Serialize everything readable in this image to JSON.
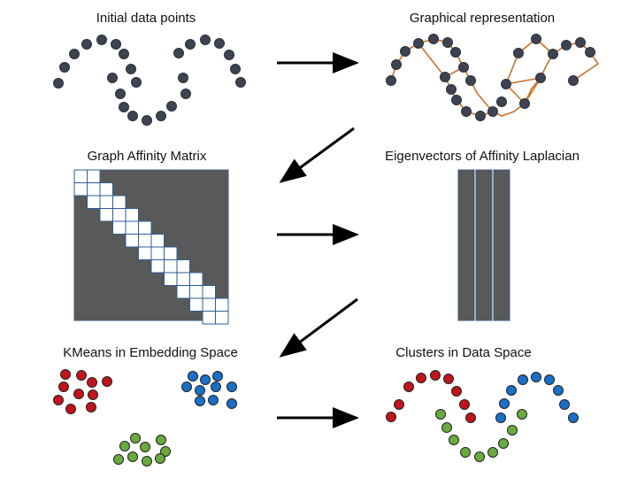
{
  "panels": {
    "initial": {
      "title": "Initial data points"
    },
    "graph": {
      "title": "Graphical representation"
    },
    "affinity": {
      "title": "Graph Affinity Matrix"
    },
    "eigen": {
      "title": "Eigenvectors of Affinity Laplacian"
    },
    "kmeans": {
      "title": "KMeans in Embedding Space"
    },
    "clusters": {
      "title": "Clusters in Data Space"
    }
  },
  "colors": {
    "point_dark": "#3d4350",
    "edge": "#c8702a",
    "matrix_fill": "#595959",
    "red": "#c0141c",
    "blue": "#1a6fc6",
    "green": "#6aaa3e",
    "arrow": "#000000"
  },
  "icons": {
    "flow_arrow": "arrow-right-icon",
    "flow_diagonal": "arrow-down-left-icon"
  }
}
